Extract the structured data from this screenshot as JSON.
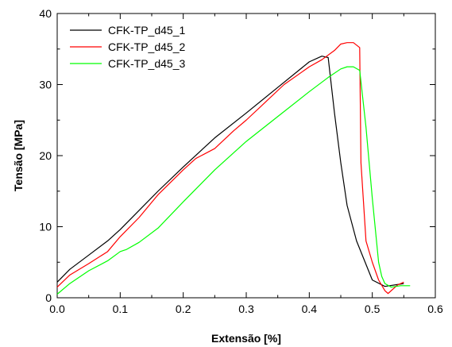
{
  "chart_data": {
    "type": "line",
    "title": "",
    "xlabel": "Extensão [%]",
    "ylabel": "Tensão [MPa]",
    "xlim": [
      0.0,
      0.6
    ],
    "ylim": [
      0,
      40
    ],
    "xticks": [
      "0.0",
      "0.1",
      "0.2",
      "0.3",
      "0.4",
      "0.5",
      "0.6"
    ],
    "yticks": [
      "0",
      "10",
      "20",
      "30",
      "40"
    ],
    "grid": false,
    "legend_position": "top-left",
    "series": [
      {
        "name": "CFK-TP_d45_1",
        "color": "#000000",
        "x": [
          0.0,
          0.02,
          0.05,
          0.08,
          0.1,
          0.13,
          0.16,
          0.2,
          0.25,
          0.3,
          0.35,
          0.4,
          0.42,
          0.43,
          0.44,
          0.45,
          0.46,
          0.475,
          0.5,
          0.52,
          0.55
        ],
        "y": [
          2.2,
          4.0,
          6.0,
          8.0,
          9.6,
          12.3,
          15.0,
          18.4,
          22.5,
          26.0,
          29.6,
          33.2,
          34.0,
          33.8,
          26.0,
          19.0,
          13.0,
          8.0,
          2.5,
          1.6,
          2.0
        ]
      },
      {
        "name": "CFK-TP_d45_2",
        "color": "#ff0000",
        "x": [
          0.0,
          0.02,
          0.05,
          0.08,
          0.1,
          0.13,
          0.16,
          0.2,
          0.22,
          0.25,
          0.28,
          0.3,
          0.33,
          0.36,
          0.4,
          0.42,
          0.44,
          0.45,
          0.46,
          0.47,
          0.48,
          0.482,
          0.49,
          0.5,
          0.51,
          0.52,
          0.525,
          0.54,
          0.55
        ],
        "y": [
          1.5,
          3.2,
          4.8,
          6.5,
          8.6,
          11.3,
          14.5,
          18.0,
          19.6,
          21.0,
          23.5,
          25.0,
          27.5,
          30.0,
          32.5,
          33.5,
          34.8,
          35.7,
          35.9,
          35.9,
          35.2,
          19.0,
          8.0,
          5.0,
          2.5,
          1.0,
          0.6,
          1.8,
          2.2
        ]
      },
      {
        "name": "CFK-TP_d45_3",
        "color": "#00ff00",
        "x": [
          0.0,
          0.02,
          0.05,
          0.08,
          0.1,
          0.11,
          0.13,
          0.16,
          0.2,
          0.25,
          0.3,
          0.35,
          0.4,
          0.43,
          0.45,
          0.46,
          0.47,
          0.48,
          0.49,
          0.5,
          0.51,
          0.515,
          0.52,
          0.53,
          0.545,
          0.56
        ],
        "y": [
          0.5,
          2.0,
          3.8,
          5.2,
          6.5,
          6.8,
          7.8,
          9.8,
          13.5,
          18.0,
          22.0,
          25.5,
          29.0,
          31.0,
          32.2,
          32.5,
          32.5,
          32.0,
          24.0,
          14.0,
          5.0,
          3.0,
          2.0,
          1.5,
          1.7,
          1.7
        ]
      }
    ]
  }
}
